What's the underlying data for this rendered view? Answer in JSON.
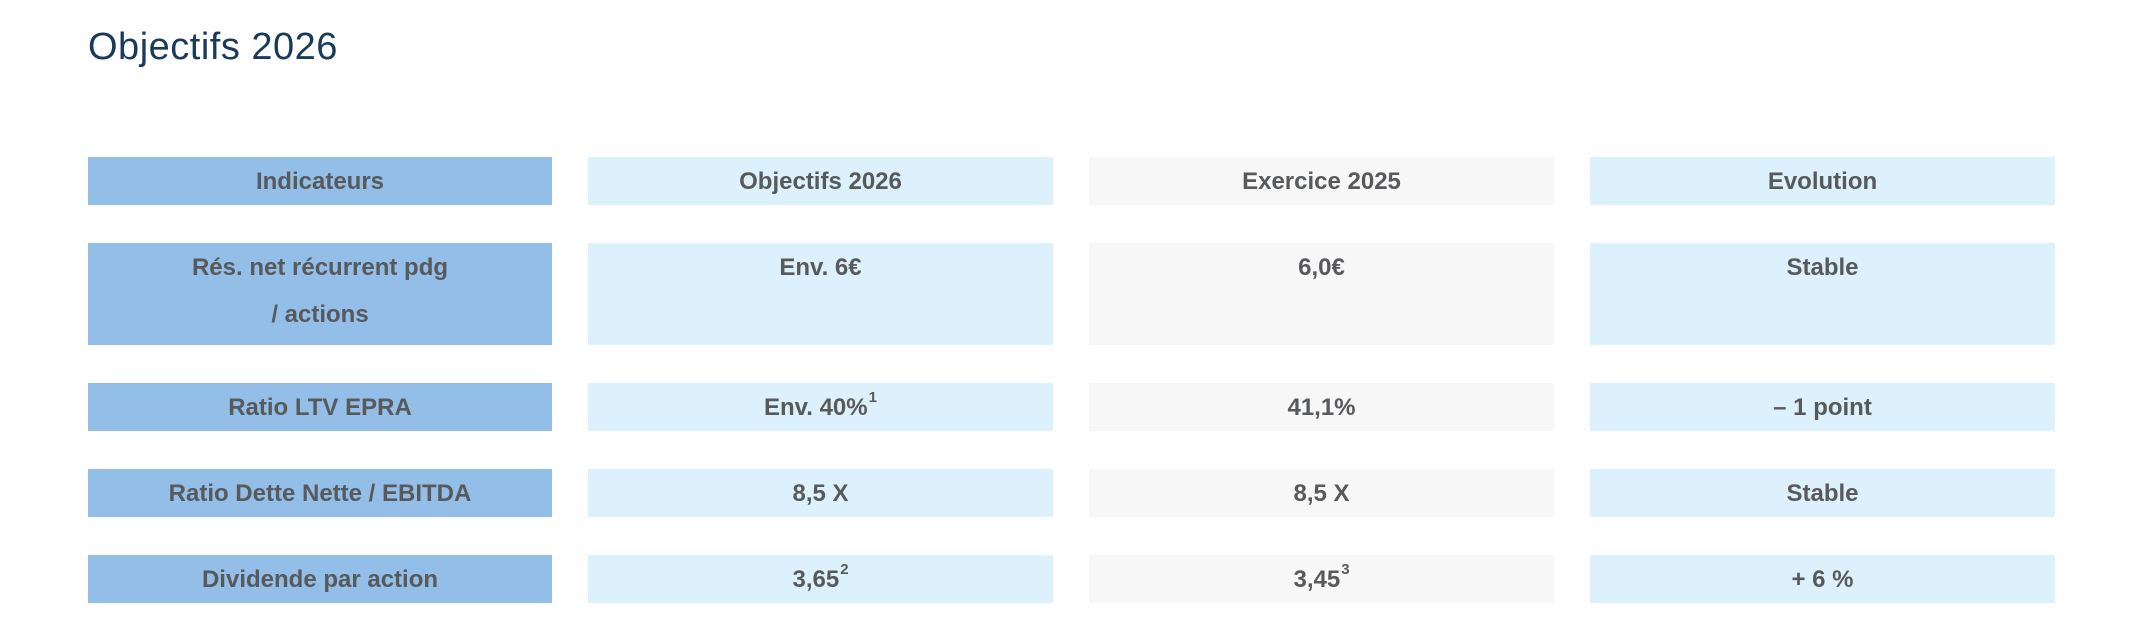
{
  "page": {
    "title": "Objectifs 2026"
  },
  "colors": {
    "title_text": "#1a3a5c",
    "cell_text": "#58595b",
    "indicator_column_bg": "#92bee7",
    "objectif_column_bg": "#dcf1fc",
    "exercice_column_bg": "#f7f7f8",
    "evolution_column_bg": "#dcf1fc",
    "page_bg": "#ffffff"
  },
  "table": {
    "headers": {
      "indicateurs": "Indicateurs",
      "objectifs": "Objectifs 2026",
      "exercice": "Exercice 2025",
      "evolution": "Evolution"
    },
    "rows": [
      {
        "indicator_line1": "Rés. net récurrent pdg",
        "indicator_line2": "/ actions",
        "objectif": "Env. 6€",
        "exercice": "6,0€",
        "evolution": "Stable"
      },
      {
        "indicator": "Ratio LTV EPRA",
        "objectif": "Env. 40%",
        "objectif_sup": "1",
        "exercice": "41,1%",
        "evolution": "– 1 point"
      },
      {
        "indicator": "Ratio Dette Nette / EBITDA",
        "objectif": "8,5 X",
        "exercice": "8,5 X",
        "evolution": "Stable"
      },
      {
        "indicator": "Dividende par action",
        "objectif": "3,65",
        "objectif_sup": "2",
        "exercice": "3,45",
        "exercice_sup": "3",
        "evolution": "+ 6 %"
      }
    ]
  }
}
